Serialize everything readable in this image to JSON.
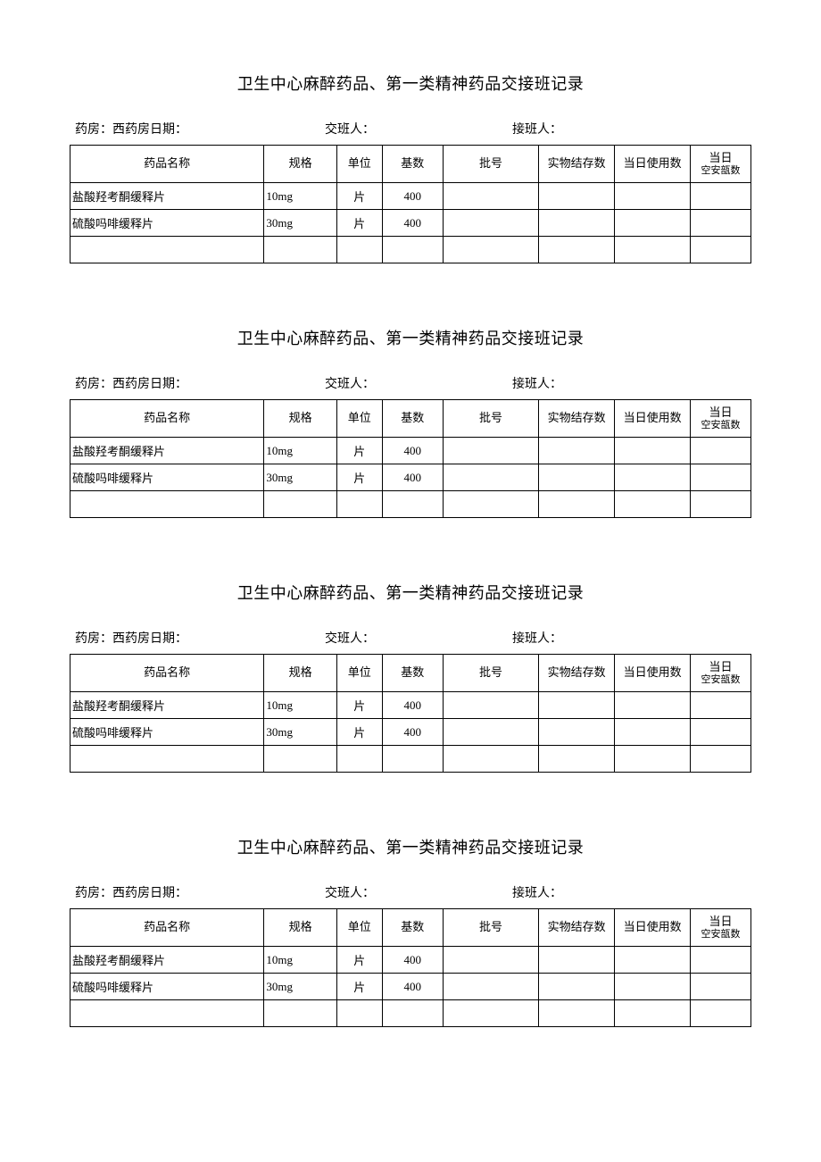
{
  "title": "卫生中心麻醉药品、第一类精神药品交接班记录",
  "info": {
    "pharmacy_label": "药房：西药房日期：",
    "handover_label": "交班人：",
    "receiver_label": "接班人："
  },
  "columns": {
    "name": "药品名称",
    "spec": "规格",
    "unit": "单位",
    "base": "基数",
    "batch": "批号",
    "stock": "实物结存数",
    "used": "当日使用数",
    "empty_line1": "当日",
    "empty_line2": "空安瓿数"
  },
  "rows": [
    {
      "name": "盐酸羟考酮缓释片",
      "spec": "10mg",
      "unit": "片",
      "base": "400",
      "batch": "",
      "stock": "",
      "used": "",
      "empty": ""
    },
    {
      "name": "硫酸吗啡缓释片",
      "spec": "30mg",
      "unit": "片",
      "base": "400",
      "batch": "",
      "stock": "",
      "used": "",
      "empty": ""
    },
    {
      "name": "",
      "spec": "",
      "unit": "",
      "base": "",
      "batch": "",
      "stock": "",
      "used": "",
      "empty": ""
    }
  ],
  "section_count": 4
}
